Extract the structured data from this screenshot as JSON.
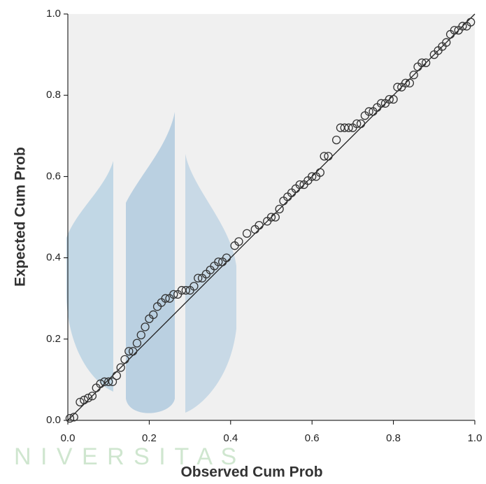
{
  "chart_data": {
    "type": "scatter",
    "x_label": "Observed Cum Prob",
    "y_label": "Expected Cum Prob",
    "watermark": "N I V E R S I T A S",
    "xlim": [
      0,
      1
    ],
    "ylim": [
      0,
      1
    ],
    "xticks": [
      {
        "value": 0,
        "label": "0.0"
      },
      0.2,
      0.4,
      0.6,
      0.8,
      {
        "value": 1,
        "label": "1.0"
      }
    ],
    "yticks": [
      {
        "value": 0,
        "label": "0.0"
      },
      0.2,
      0.4,
      0.6,
      0.8,
      {
        "value": 1,
        "label": "1.0"
      }
    ],
    "reference_line": true,
    "background": "#f0f0f0",
    "series": [
      {
        "color": "#333333",
        "x": [
          0.005,
          0.015,
          0.03,
          0.04,
          0.05,
          0.06,
          0.07,
          0.08,
          0.09,
          0.1,
          0.11,
          0.12,
          0.13,
          0.14,
          0.15,
          0.16,
          0.17,
          0.18,
          0.19,
          0.2,
          0.21,
          0.22,
          0.23,
          0.24,
          0.25,
          0.26,
          0.27,
          0.28,
          0.29,
          0.3,
          0.31,
          0.32,
          0.33,
          0.34,
          0.35,
          0.36,
          0.37,
          0.38,
          0.39,
          0.41,
          0.42,
          0.44,
          0.46,
          0.47,
          0.49,
          0.5,
          0.51,
          0.52,
          0.53,
          0.54,
          0.55,
          0.56,
          0.57,
          0.58,
          0.59,
          0.6,
          0.61,
          0.62,
          0.63,
          0.64,
          0.66,
          0.67,
          0.68,
          0.69,
          0.7,
          0.71,
          0.72,
          0.73,
          0.74,
          0.75,
          0.76,
          0.77,
          0.78,
          0.79,
          0.8,
          0.81,
          0.82,
          0.83,
          0.84,
          0.85,
          0.86,
          0.87,
          0.88,
          0.9,
          0.91,
          0.92,
          0.93,
          0.94,
          0.95,
          0.96,
          0.97,
          0.98,
          0.99
        ],
        "values": [
          0.005,
          0.008,
          0.045,
          0.05,
          0.055,
          0.06,
          0.08,
          0.09,
          0.095,
          0.095,
          0.095,
          0.11,
          0.13,
          0.15,
          0.17,
          0.17,
          0.19,
          0.21,
          0.23,
          0.25,
          0.26,
          0.28,
          0.29,
          0.3,
          0.3,
          0.31,
          0.31,
          0.32,
          0.32,
          0.32,
          0.33,
          0.35,
          0.35,
          0.36,
          0.37,
          0.38,
          0.39,
          0.39,
          0.4,
          0.43,
          0.44,
          0.46,
          0.47,
          0.48,
          0.49,
          0.5,
          0.5,
          0.52,
          0.54,
          0.55,
          0.56,
          0.57,
          0.58,
          0.58,
          0.59,
          0.6,
          0.6,
          0.61,
          0.65,
          0.65,
          0.69,
          0.72,
          0.72,
          0.72,
          0.72,
          0.73,
          0.73,
          0.75,
          0.76,
          0.76,
          0.77,
          0.78,
          0.78,
          0.79,
          0.79,
          0.82,
          0.82,
          0.83,
          0.83,
          0.85,
          0.87,
          0.88,
          0.88,
          0.9,
          0.91,
          0.92,
          0.93,
          0.95,
          0.96,
          0.96,
          0.97,
          0.97,
          0.98
        ]
      }
    ]
  }
}
